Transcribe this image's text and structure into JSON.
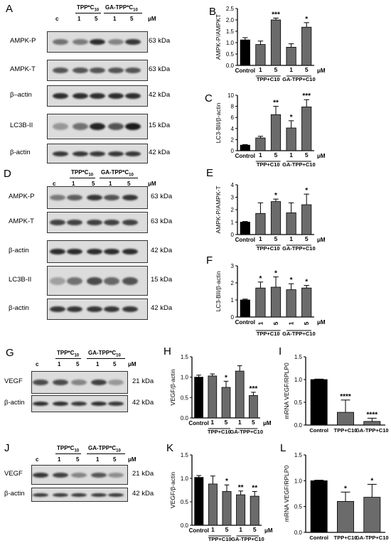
{
  "panel_letters": [
    "A",
    "B",
    "C",
    "D",
    "E",
    "F",
    "G",
    "H",
    "I",
    "J",
    "K",
    "L"
  ],
  "blot_header": {
    "c": "c",
    "group1": "TPP*C",
    "group2": "GA-TPP*C",
    "sub": "10",
    "unit": "μM",
    "lanes": [
      "1",
      "5",
      "1",
      "5"
    ]
  },
  "blots": {
    "A": [
      {
        "label": "AMPK-P",
        "kda": "63 kDa"
      },
      {
        "label": "AMPK-T",
        "kda": "63 kDa"
      },
      {
        "label": "β–actin",
        "kda": "42 kDa"
      },
      {
        "label": "LC3B-II",
        "kda": "15 kDa"
      },
      {
        "label": "β-actin",
        "kda": "42 kDa"
      }
    ],
    "D": [
      {
        "label": "AMPK-P",
        "kda": "63 kDa"
      },
      {
        "label": "AMPK-T",
        "kda": "63 kDa"
      },
      {
        "label": "β-actin",
        "kda": "42 kDa"
      },
      {
        "label": "LC3B-II",
        "kda": "15 kDa"
      },
      {
        "label": "β-actin",
        "kda": "42 kDa"
      }
    ],
    "G": [
      {
        "label": "VEGF",
        "kda": "21 kDa"
      },
      {
        "label": "β-actin",
        "kda": "42 kDa"
      }
    ],
    "J": [
      {
        "label": "VEGF",
        "kda": "21 kDa"
      },
      {
        "label": "β-actin",
        "kda": "42 kDa"
      }
    ]
  },
  "chart_data": [
    {
      "id": "B",
      "type": "bar",
      "ylabel": "AMPK-P/AMPKT",
      "ylim": [
        0,
        2.5
      ],
      "ticks": [
        "0.0",
        "0.5",
        "1.0",
        "1.5",
        "2.0",
        "2.5"
      ],
      "categories": [
        "Control",
        "1",
        "5",
        "1",
        "5"
      ],
      "values": [
        1.12,
        0.92,
        2.0,
        0.8,
        1.68
      ],
      "errors": [
        0.1,
        0.15,
        0.08,
        0.15,
        0.2
      ],
      "stars": [
        "",
        "",
        "***",
        "",
        "*"
      ],
      "groups": [
        "TPP+C10",
        "GA-TPP+C10"
      ],
      "unit": "μM"
    },
    {
      "id": "C",
      "type": "bar",
      "ylabel": "LC3-BII/β-actin",
      "ylim": [
        0,
        10
      ],
      "ticks": [
        "0",
        "2",
        "4",
        "6",
        "8",
        "10"
      ],
      "categories": [
        "Control",
        "1",
        "5",
        "1",
        "5"
      ],
      "values": [
        1.0,
        2.3,
        6.5,
        4.1,
        7.9
      ],
      "errors": [
        0.1,
        0.3,
        1.5,
        1.3,
        1.3
      ],
      "stars": [
        "",
        "",
        "**",
        "*",
        "***"
      ],
      "groups": [
        "TPP+C10",
        "GA-TPP+C10"
      ],
      "unit": "μM"
    },
    {
      "id": "E",
      "type": "bar",
      "ylabel": "AMPK-P/AMPK-T",
      "ylim": [
        0,
        4
      ],
      "ticks": [
        "0",
        "1",
        "2",
        "3",
        "4"
      ],
      "categories": [
        "Control",
        "1",
        "5",
        "1",
        "5"
      ],
      "values": [
        1.0,
        1.7,
        2.65,
        1.75,
        2.4
      ],
      "errors": [
        0.05,
        0.85,
        0.2,
        0.8,
        0.85
      ],
      "stars": [
        "",
        "",
        "*",
        "",
        "*"
      ],
      "groups": [
        "TPP+C10",
        "GA-TPP+C10"
      ],
      "unit": "μM"
    },
    {
      "id": "F",
      "type": "bar",
      "ylabel": "LC3-BII/β-actin",
      "ylim": [
        0,
        3
      ],
      "ticks": [
        "0",
        "1",
        "2",
        "3"
      ],
      "categories": [
        "Control",
        "1",
        "5",
        "1",
        "5"
      ],
      "values": [
        1.0,
        1.7,
        1.75,
        1.6,
        1.7
      ],
      "errors": [
        0.05,
        0.35,
        0.6,
        0.35,
        0.15
      ],
      "stars": [
        "",
        "*",
        "*",
        "*",
        "*"
      ],
      "groups": [
        "TPP+C10",
        "GA-TPP+C10"
      ],
      "unit": "μM",
      "rotated_groups": true
    },
    {
      "id": "H",
      "type": "bar",
      "ylabel": "VEGF/β-actin",
      "ylim": [
        0,
        1.5
      ],
      "ticks": [
        "0.0",
        "0.5",
        "1.0",
        "1.5"
      ],
      "categories": [
        "Control",
        "1",
        "5",
        "1",
        "5"
      ],
      "values": [
        1.0,
        1.03,
        0.75,
        1.15,
        0.55
      ],
      "errors": [
        0.05,
        0.05,
        0.15,
        0.13,
        0.08
      ],
      "stars": [
        "",
        "",
        "*",
        "",
        "***"
      ],
      "groups": [
        "TPP+C10",
        "GA-TPP+C10"
      ],
      "unit": "μM"
    },
    {
      "id": "I",
      "type": "bar",
      "ylabel": "mRNA VEGF/RPLP0",
      "ylim": [
        0,
        1.5
      ],
      "ticks": [
        "0.0",
        "0.5",
        "1.0",
        "1.5"
      ],
      "categories": [
        "Control",
        "TPP+C10",
        "GA-TPP+C10"
      ],
      "values": [
        1.0,
        0.28,
        0.08
      ],
      "errors": [
        0.01,
        0.27,
        0.07
      ],
      "stars": [
        "",
        "****",
        "****"
      ]
    },
    {
      "id": "K",
      "type": "bar",
      "ylabel": "VEGF/β-actin",
      "ylim": [
        0,
        1.5
      ],
      "ticks": [
        "0.0",
        "0.5",
        "1.0",
        "1.5"
      ],
      "categories": [
        "Control",
        "1",
        "5",
        "1",
        "5"
      ],
      "values": [
        1.02,
        0.88,
        0.72,
        0.65,
        0.62
      ],
      "errors": [
        0.04,
        0.17,
        0.14,
        0.08,
        0.1
      ],
      "stars": [
        "",
        "",
        "*",
        "**",
        "**"
      ],
      "groups": [
        "TPP+C10",
        "GA-TPP+C10"
      ],
      "unit": "μM"
    },
    {
      "id": "L",
      "type": "bar",
      "ylabel": "mRNA VEGF/RPLP0",
      "ylim": [
        0,
        1.5
      ],
      "ticks": [
        "0.0",
        "0.5",
        "1.0",
        "1.5"
      ],
      "categories": [
        "Control",
        "TPP+C10",
        "GA-TPP+C10"
      ],
      "values": [
        1.0,
        0.6,
        0.68
      ],
      "errors": [
        0.01,
        0.18,
        0.25
      ],
      "stars": [
        "",
        "*",
        "*"
      ]
    }
  ]
}
